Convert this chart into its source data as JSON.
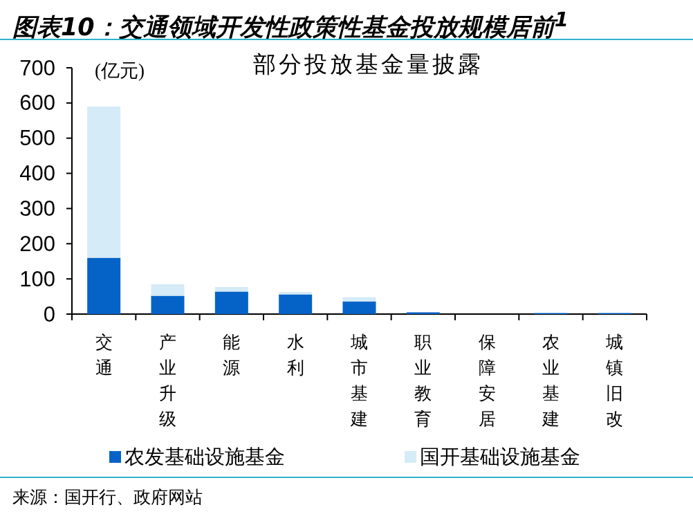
{
  "chart_data": {
    "type": "bar",
    "title": "图表10：交通领域开发性政策性基金投放规模居前$^{1}$",
    "subtitle": "部分投放基金量披露",
    "ylabel": "(亿元)",
    "categories": [
      "交通",
      "产业升级",
      "能源",
      "水利",
      "城市基建",
      "职业教育",
      "保障安居",
      "农业基建",
      "城镇旧改"
    ],
    "stacked": true,
    "series": [
      {
        "name": "农发基础设施基金",
        "color": "#0563c8",
        "values": [
          160,
          52,
          64,
          56,
          36,
          5,
          0,
          3,
          3
        ]
      },
      {
        "name": "国开基础设施基金",
        "color": "#d5ebf7",
        "values": [
          430,
          33,
          13,
          7,
          12,
          0,
          0,
          0,
          0
        ]
      }
    ],
    "ylim": [
      0,
      700
    ],
    "yticks": [
      0,
      100,
      200,
      300,
      400,
      500,
      600,
      700
    ],
    "legend": "bottom",
    "annotations": [
      "来源：国开行、政府网站"
    ]
  }
}
